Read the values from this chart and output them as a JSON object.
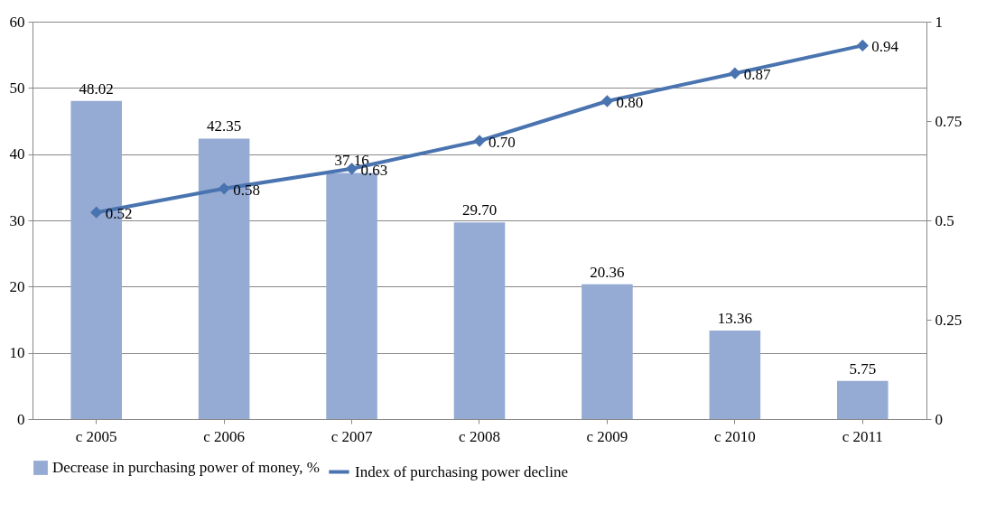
{
  "chart_data": {
    "type": "bar",
    "categories": [
      "c 2005",
      "c 2006",
      "c 2007",
      "c 2008",
      "c 2009",
      "c 2010",
      "c 2011"
    ],
    "series": [
      {
        "name": "Decrease in purchasing power of money, %",
        "color": "#95abd4",
        "values": [
          48.02,
          42.35,
          37.16,
          29.7,
          20.36,
          13.36,
          5.75
        ],
        "value_labels": [
          "48.02",
          "42.35",
          "37.16",
          "29.70",
          "20.36",
          "13.36",
          "5.75"
        ]
      },
      {
        "name": "Index of purchasing power decline",
        "type": "line",
        "axis": "y2",
        "color": "#4a74b0",
        "marker": "diamond",
        "values": [
          0.52,
          0.58,
          0.63,
          0.7,
          0.8,
          0.87,
          0.94
        ],
        "value_labels": [
          "0.52",
          "0.58",
          "0.63",
          "0.70",
          "0.80",
          "0.87",
          "0.94"
        ]
      }
    ],
    "ylim": [
      0,
      60
    ],
    "yticks": [
      0,
      10,
      20,
      30,
      40,
      50,
      60
    ],
    "y2lim": [
      0,
      1
    ],
    "y2ticks": [
      0,
      0.25,
      0.5,
      0.75,
      1
    ],
    "grid": "y",
    "legend": "bottom"
  }
}
